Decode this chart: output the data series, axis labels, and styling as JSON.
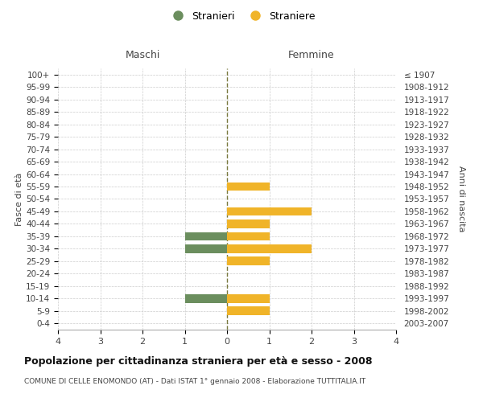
{
  "age_groups": [
    "0-4",
    "5-9",
    "10-14",
    "15-19",
    "20-24",
    "25-29",
    "30-34",
    "35-39",
    "40-44",
    "45-49",
    "50-54",
    "55-59",
    "60-64",
    "65-69",
    "70-74",
    "75-79",
    "80-84",
    "85-89",
    "90-94",
    "95-99",
    "100+"
  ],
  "birth_years": [
    "2003-2007",
    "1998-2002",
    "1993-1997",
    "1988-1992",
    "1983-1987",
    "1978-1982",
    "1973-1977",
    "1968-1972",
    "1963-1967",
    "1958-1962",
    "1953-1957",
    "1948-1952",
    "1943-1947",
    "1938-1942",
    "1933-1937",
    "1928-1932",
    "1923-1927",
    "1918-1922",
    "1913-1917",
    "1908-1912",
    "≤ 1907"
  ],
  "maschi": [
    0,
    0,
    1,
    0,
    0,
    0,
    1,
    1,
    0,
    0,
    0,
    0,
    0,
    0,
    0,
    0,
    0,
    0,
    0,
    0,
    0
  ],
  "femmine": [
    0,
    1,
    1,
    0,
    0,
    1,
    2,
    1,
    1,
    2,
    0,
    1,
    0,
    0,
    0,
    0,
    0,
    0,
    0,
    0,
    0
  ],
  "color_maschi": "#6b8e5e",
  "color_femmine": "#f0b429",
  "background_color": "#ffffff",
  "grid_color": "#cccccc",
  "center_line_color": "#7a7a40",
  "xlim": 4,
  "xticks": [
    -4,
    -3,
    -2,
    -1,
    0,
    1,
    2,
    3,
    4
  ],
  "xtick_labels": [
    "4",
    "3",
    "2",
    "1",
    "0",
    "1",
    "2",
    "3",
    "4"
  ],
  "title": "Popolazione per cittadinanza straniera per età e sesso - 2008",
  "subtitle": "COMUNE DI CELLE ENOMONDO (AT) - Dati ISTAT 1° gennaio 2008 - Elaborazione TUTTITALIA.IT",
  "ylabel_left": "Fasce di età",
  "ylabel_right": "Anni di nascita",
  "label_maschi": "Maschi",
  "label_femmine": "Femmine",
  "legend_stranieri": "Stranieri",
  "legend_straniere": "Straniere",
  "bar_height": 0.7
}
